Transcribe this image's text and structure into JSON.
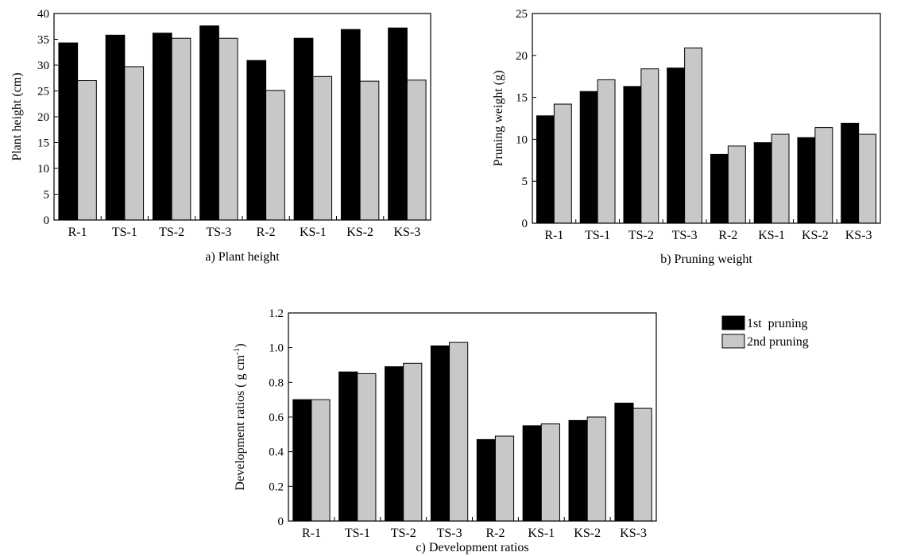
{
  "chart_data": [
    {
      "type": "bar",
      "caption": "a)  Plant height",
      "ylabel": "Plant height (cm)",
      "ylim": [
        0,
        40
      ],
      "yticks": [
        "0",
        "5",
        "10",
        "15",
        "20",
        "25",
        "30",
        "35",
        "40"
      ],
      "categories": [
        "R-1",
        "TS-1",
        "TS-2",
        "TS-3",
        "R-2",
        "KS-1",
        "KS-2",
        "KS-3"
      ],
      "series": [
        {
          "name": "1st pruning",
          "values": [
            34.3,
            35.8,
            36.2,
            37.6,
            30.9,
            35.2,
            36.9,
            37.2
          ]
        },
        {
          "name": "2nd pruning",
          "values": [
            27.0,
            29.7,
            35.2,
            35.2,
            25.1,
            27.8,
            26.9,
            27.1
          ]
        }
      ]
    },
    {
      "type": "bar",
      "caption": "b) Pruning weight",
      "ylabel": "Pruning weight (g)",
      "ylim": [
        0,
        25
      ],
      "yticks": [
        "0",
        "5",
        "10",
        "15",
        "20",
        "25"
      ],
      "categories": [
        "R-1",
        "TS-1",
        "TS-2",
        "TS-3",
        "R-2",
        "KS-1",
        "KS-2",
        "KS-3"
      ],
      "series": [
        {
          "name": "1st pruning",
          "values": [
            12.8,
            15.7,
            16.3,
            18.5,
            8.2,
            9.6,
            10.2,
            11.9
          ]
        },
        {
          "name": "2nd pruning",
          "values": [
            14.2,
            17.1,
            18.4,
            20.9,
            9.2,
            10.6,
            11.4,
            10.6
          ]
        }
      ]
    },
    {
      "type": "bar",
      "caption": "c) Development ratios",
      "ylabel": "Development ratios ( g cm",
      "ylabel_sup": "-1",
      "ylabel_end": ")",
      "ylim": [
        0,
        1.2
      ],
      "yticks": [
        "0",
        "0.2",
        "0.4",
        "0.6",
        "0.8",
        "1.0",
        "1.2"
      ],
      "categories": [
        "R-1",
        "TS-1",
        "TS-2",
        "TS-3",
        "R-2",
        "KS-1",
        "KS-2",
        "KS-3"
      ],
      "series": [
        {
          "name": "1st pruning",
          "values": [
            0.7,
            0.86,
            0.89,
            1.01,
            0.47,
            0.55,
            0.58,
            0.68
          ]
        },
        {
          "name": "2nd pruning",
          "values": [
            0.7,
            0.85,
            0.91,
            1.03,
            0.49,
            0.56,
            0.6,
            0.65
          ]
        }
      ]
    }
  ],
  "legend": {
    "items": [
      {
        "label": "1st  pruning",
        "color": "#000000"
      },
      {
        "label": "2nd pruning",
        "color": "#c8c8c8"
      }
    ]
  },
  "colors": {
    "series1": "#000000",
    "series2": "#c8c8c8"
  }
}
